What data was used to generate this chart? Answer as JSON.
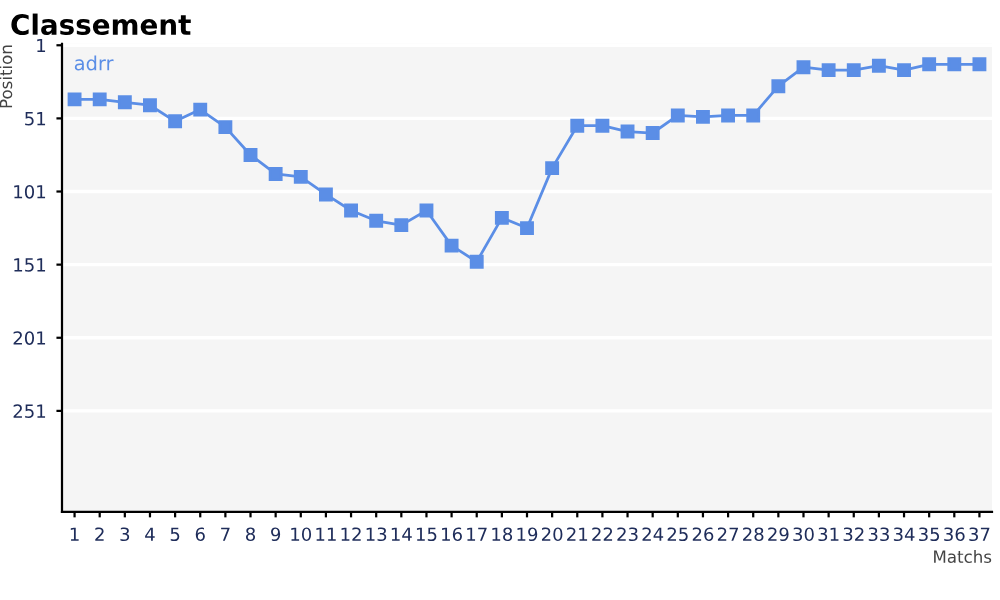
{
  "chart_data": {
    "type": "line",
    "title": "Classement",
    "xlabel": "Matchs",
    "ylabel": "Position",
    "categories": [
      "1",
      "2",
      "3",
      "4",
      "5",
      "6",
      "7",
      "8",
      "9",
      "10",
      "11",
      "12",
      "13",
      "14",
      "15",
      "16",
      "17",
      "18",
      "19",
      "20",
      "21",
      "22",
      "23",
      "24",
      "25",
      "26",
      "27",
      "28",
      "29",
      "30",
      "31",
      "32",
      "33",
      "34",
      "35",
      "36",
      "37"
    ],
    "series": [
      {
        "name": "adrr",
        "color": "#5b8ee6",
        "values": [
          38,
          38,
          40,
          42,
          53,
          45,
          57,
          76,
          89,
          91,
          103,
          114,
          121,
          124,
          114,
          138,
          149,
          119,
          126,
          85,
          56,
          56,
          60,
          61,
          49,
          50,
          49,
          49,
          29,
          16,
          18,
          18,
          15,
          18,
          14,
          14,
          14
        ]
      }
    ],
    "ylim": [
      320,
      0
    ],
    "yticks": [
      1,
      51,
      101,
      151,
      201,
      251
    ],
    "grid": "y",
    "legend": "top left",
    "marker": "square",
    "line_style": "solid"
  }
}
